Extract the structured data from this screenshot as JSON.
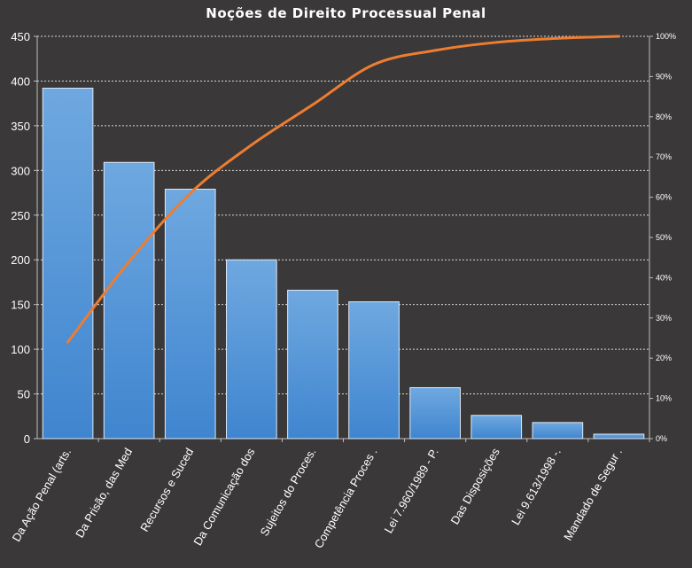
{
  "chart_data": {
    "type": "bar",
    "title": "Noções de Direito  Processual Penal",
    "categories": [
      "Da Ação Penal (arts.",
      "Da Prisão, das Med",
      "Recursos e Suced",
      "Da Comunicação dos",
      "Sujeitos do Proces.",
      "Competência Proces .",
      "Lei 7.960/1989 - P.",
      "Das Disposições",
      "Lei 9.613/1998 -.",
      "Mandado de Segur ."
    ],
    "series": [
      {
        "type": "bar",
        "values": [
          392,
          309,
          279,
          200,
          166,
          153,
          57,
          26,
          18,
          5
        ],
        "color": "#5b9bd5"
      },
      {
        "type": "line",
        "axis": "right",
        "values": [
          24,
          44,
          61,
          73,
          83,
          93,
          96.5,
          98.5,
          99.5,
          100
        ],
        "color": "#ed7d31"
      }
    ],
    "ylim": [
      0,
      450
    ],
    "yticks": [
      0,
      50,
      100,
      150,
      200,
      250,
      300,
      350,
      400,
      450
    ],
    "y2lim": [
      0,
      100
    ],
    "y2ticks": [
      "0%",
      "10%",
      "20%",
      "30%",
      "40%",
      "50%",
      "60%",
      "70%",
      "80%",
      "90%",
      "100%"
    ],
    "grid": true,
    "legend": "none"
  }
}
